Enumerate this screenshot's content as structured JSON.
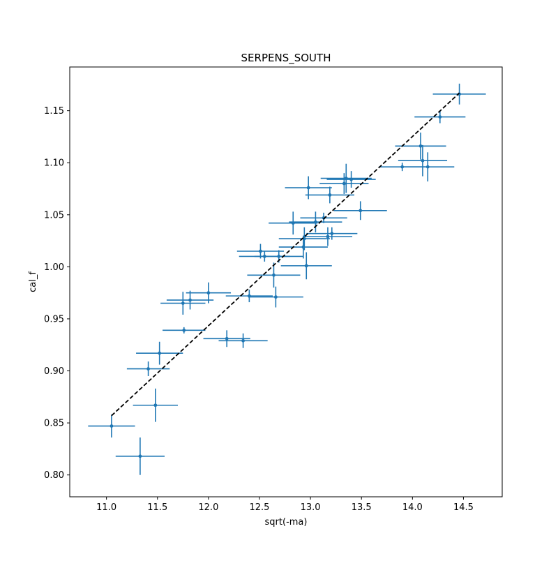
{
  "chart_data": {
    "type": "scatter",
    "title": "SERPENS_SOUTH",
    "xlabel": "sqrt(-ma)",
    "ylabel": "cal_f",
    "xlim": [
      10.64,
      14.88
    ],
    "ylim": [
      0.779,
      1.192
    ],
    "xticks": [
      11.0,
      11.5,
      12.0,
      12.5,
      13.0,
      13.5,
      14.0,
      14.5
    ],
    "xtick_labels": [
      "11.0",
      "11.5",
      "12.0",
      "12.5",
      "13.0",
      "13.5",
      "14.0",
      "14.5"
    ],
    "yticks": [
      0.8,
      0.85,
      0.9,
      0.95,
      1.0,
      1.05,
      1.1,
      1.15
    ],
    "ytick_labels": [
      "0.80",
      "0.85",
      "0.90",
      "0.95",
      "1.00",
      "1.05",
      "1.10",
      "1.15"
    ],
    "grid": false,
    "series": [
      {
        "kind": "errorbar",
        "color": "#1f77b4",
        "points": [
          {
            "x": 14.46,
            "y": 1.166,
            "xerr": 0.26,
            "yerr": 0.01
          },
          {
            "x": 14.27,
            "y": 1.144,
            "xerr": 0.25,
            "yerr": 0.006
          },
          {
            "x": 14.08,
            "y": 1.116,
            "xerr": 0.25,
            "yerr": 0.013
          },
          {
            "x": 14.1,
            "y": 1.102,
            "xerr": 0.24,
            "yerr": 0.015
          },
          {
            "x": 14.15,
            "y": 1.096,
            "xerr": 0.26,
            "yerr": 0.014
          },
          {
            "x": 13.9,
            "y": 1.096,
            "xerr": 0.23,
            "yerr": 0.004
          },
          {
            "x": 13.35,
            "y": 1.085,
            "xerr": 0.25,
            "yerr": 0.014
          },
          {
            "x": 13.4,
            "y": 1.084,
            "xerr": 0.24,
            "yerr": 0.008
          },
          {
            "x": 13.33,
            "y": 1.08,
            "xerr": 0.24,
            "yerr": 0.01
          },
          {
            "x": 12.98,
            "y": 1.076,
            "xerr": 0.23,
            "yerr": 0.011
          },
          {
            "x": 13.19,
            "y": 1.069,
            "xerr": 0.24,
            "yerr": 0.008
          },
          {
            "x": 13.49,
            "y": 1.054,
            "xerr": 0.26,
            "yerr": 0.009
          },
          {
            "x": 13.13,
            "y": 1.047,
            "xerr": 0.23,
            "yerr": 0.005
          },
          {
            "x": 13.05,
            "y": 1.043,
            "xerr": 0.26,
            "yerr": 0.01
          },
          {
            "x": 12.83,
            "y": 1.042,
            "xerr": 0.24,
            "yerr": 0.011
          },
          {
            "x": 13.21,
            "y": 1.032,
            "xerr": 0.25,
            "yerr": 0.006
          },
          {
            "x": 13.17,
            "y": 1.029,
            "xerr": 0.24,
            "yerr": 0.009
          },
          {
            "x": 12.94,
            "y": 1.027,
            "xerr": 0.25,
            "yerr": 0.011
          },
          {
            "x": 12.93,
            "y": 1.019,
            "xerr": 0.24,
            "yerr": 0.011
          },
          {
            "x": 12.51,
            "y": 1.015,
            "xerr": 0.23,
            "yerr": 0.007
          },
          {
            "x": 12.55,
            "y": 1.01,
            "xerr": 0.25,
            "yerr": 0.005
          },
          {
            "x": 12.69,
            "y": 1.01,
            "xerr": 0.24,
            "yerr": 0.006
          },
          {
            "x": 12.96,
            "y": 1.001,
            "xerr": 0.25,
            "yerr": 0.013
          },
          {
            "x": 12.64,
            "y": 0.992,
            "xerr": 0.26,
            "yerr": 0.012
          },
          {
            "x": 12.4,
            "y": 0.972,
            "xerr": 0.23,
            "yerr": 0.006
          },
          {
            "x": 12.66,
            "y": 0.971,
            "xerr": 0.27,
            "yerr": 0.01
          },
          {
            "x": 12.0,
            "y": 0.975,
            "xerr": 0.22,
            "yerr": 0.01
          },
          {
            "x": 11.82,
            "y": 0.968,
            "xerr": 0.23,
            "yerr": 0.009
          },
          {
            "x": 11.75,
            "y": 0.965,
            "xerr": 0.22,
            "yerr": 0.011
          },
          {
            "x": 11.76,
            "y": 0.939,
            "xerr": 0.21,
            "yerr": 0.003
          },
          {
            "x": 12.18,
            "y": 0.931,
            "xerr": 0.23,
            "yerr": 0.008
          },
          {
            "x": 12.34,
            "y": 0.929,
            "xerr": 0.24,
            "yerr": 0.007
          },
          {
            "x": 11.52,
            "y": 0.917,
            "xerr": 0.23,
            "yerr": 0.011
          },
          {
            "x": 11.41,
            "y": 0.902,
            "xerr": 0.21,
            "yerr": 0.007
          },
          {
            "x": 11.48,
            "y": 0.867,
            "xerr": 0.22,
            "yerr": 0.016
          },
          {
            "x": 11.05,
            "y": 0.847,
            "xerr": 0.23,
            "yerr": 0.011
          },
          {
            "x": 11.33,
            "y": 0.818,
            "xerr": 0.24,
            "yerr": 0.018
          }
        ]
      },
      {
        "kind": "line",
        "style": "dashed",
        "color": "#000000",
        "x": [
          11.05,
          14.46
        ],
        "y": [
          0.857,
          1.167
        ]
      }
    ]
  }
}
